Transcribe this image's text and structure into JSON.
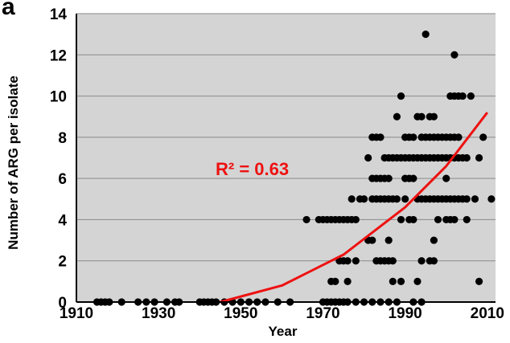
{
  "chart_data": {
    "type": "scatter",
    "panel_label": "a",
    "title": "",
    "xlabel": "Year",
    "ylabel": "Number of ARG per isolate",
    "xlim": [
      1910,
      2012
    ],
    "ylim": [
      0,
      14
    ],
    "x_ticks": [
      1910,
      1930,
      1950,
      1970,
      1990,
      2010
    ],
    "y_ticks": [
      0,
      2,
      4,
      6,
      8,
      10,
      12,
      14
    ],
    "grid": "horizontal",
    "background_color": "#d4d4d4",
    "point_color": "#000000",
    "trend_color": "#ee1111",
    "annotation": "R² = 0.63",
    "trendline": {
      "type": "polynomial",
      "points": [
        [
          1945,
          0
        ],
        [
          1960,
          0.8
        ],
        [
          1975,
          2.3
        ],
        [
          1990,
          4.6
        ],
        [
          2000,
          6.6
        ],
        [
          2010,
          9.2
        ]
      ]
    },
    "points": [
      [
        1915,
        0
      ],
      [
        1916,
        0
      ],
      [
        1917,
        0
      ],
      [
        1918,
        0
      ],
      [
        1921,
        0
      ],
      [
        1925,
        0
      ],
      [
        1927,
        0
      ],
      [
        1929,
        0
      ],
      [
        1932,
        0
      ],
      [
        1934,
        0
      ],
      [
        1935,
        0
      ],
      [
        1940,
        0
      ],
      [
        1941,
        0
      ],
      [
        1942,
        0
      ],
      [
        1943,
        0
      ],
      [
        1944,
        0
      ],
      [
        1946,
        0
      ],
      [
        1948,
        0
      ],
      [
        1950,
        0
      ],
      [
        1952,
        0
      ],
      [
        1954,
        0
      ],
      [
        1956,
        0
      ],
      [
        1959,
        0
      ],
      [
        1962,
        0
      ],
      [
        1966,
        4
      ],
      [
        1969,
        4
      ],
      [
        1970,
        4
      ],
      [
        1971,
        4
      ],
      [
        1972,
        4
      ],
      [
        1973,
        4
      ],
      [
        1974,
        4
      ],
      [
        1975,
        4
      ],
      [
        1976,
        4
      ],
      [
        1977,
        4
      ],
      [
        1978,
        4
      ],
      [
        1972,
        1
      ],
      [
        1973,
        1
      ],
      [
        1974,
        2
      ],
      [
        1975,
        2
      ],
      [
        1976,
        2
      ],
      [
        1978,
        2
      ],
      [
        1976,
        1
      ],
      [
        1977,
        5
      ],
      [
        1979,
        5
      ],
      [
        1980,
        5
      ],
      [
        1970,
        0
      ],
      [
        1971,
        0
      ],
      [
        1972,
        0
      ],
      [
        1973,
        0
      ],
      [
        1974,
        0
      ],
      [
        1975,
        0
      ],
      [
        1976,
        0
      ],
      [
        1978,
        0
      ],
      [
        1980,
        0
      ],
      [
        1982,
        0
      ],
      [
        1984,
        0
      ],
      [
        1986,
        0
      ],
      [
        1988,
        0
      ],
      [
        1992,
        0
      ],
      [
        1994,
        0
      ],
      [
        1981,
        3
      ],
      [
        1982,
        3
      ],
      [
        1983,
        2
      ],
      [
        1984,
        2
      ],
      [
        1985,
        2
      ],
      [
        1986,
        2
      ],
      [
        1987,
        2
      ],
      [
        1986,
        3
      ],
      [
        1987,
        1
      ],
      [
        1989,
        1
      ],
      [
        1988,
        5
      ],
      [
        1989,
        4
      ],
      [
        1990,
        5
      ],
      [
        1981,
        7
      ],
      [
        1982,
        8
      ],
      [
        1983,
        8
      ],
      [
        1984,
        8
      ],
      [
        1985,
        7
      ],
      [
        1986,
        7
      ],
      [
        1987,
        7
      ],
      [
        1988,
        7
      ],
      [
        1989,
        7
      ],
      [
        1982,
        6
      ],
      [
        1983,
        6
      ],
      [
        1984,
        6
      ],
      [
        1985,
        6
      ],
      [
        1986,
        6
      ],
      [
        1982,
        5
      ],
      [
        1983,
        5
      ],
      [
        1984,
        5
      ],
      [
        1985,
        5
      ],
      [
        1986,
        5
      ],
      [
        1987,
        5
      ],
      [
        1988,
        9
      ],
      [
        1990,
        8
      ],
      [
        1991,
        8
      ],
      [
        1992,
        8
      ],
      [
        1993,
        9
      ],
      [
        1994,
        9
      ],
      [
        1989,
        10
      ],
      [
        1990,
        7
      ],
      [
        1991,
        7
      ],
      [
        1992,
        7
      ],
      [
        1993,
        7
      ],
      [
        1994,
        7
      ],
      [
        1995,
        7
      ],
      [
        1996,
        7
      ],
      [
        1997,
        7
      ],
      [
        1998,
        7
      ],
      [
        1999,
        7
      ],
      [
        2000,
        7
      ],
      [
        2001,
        7
      ],
      [
        2002,
        7
      ],
      [
        2003,
        7
      ],
      [
        2004,
        7
      ],
      [
        2005,
        7
      ],
      [
        1990,
        6
      ],
      [
        1991,
        6
      ],
      [
        1992,
        6
      ],
      [
        1993,
        5
      ],
      [
        1994,
        5
      ],
      [
        1995,
        5
      ],
      [
        1996,
        5
      ],
      [
        1997,
        5
      ],
      [
        1998,
        5
      ],
      [
        1999,
        5
      ],
      [
        2000,
        5
      ],
      [
        2001,
        5
      ],
      [
        2002,
        5
      ],
      [
        2003,
        5
      ],
      [
        2004,
        5
      ],
      [
        2005,
        5
      ],
      [
        1991,
        4
      ],
      [
        1992,
        4
      ],
      [
        1993,
        1
      ],
      [
        1994,
        2
      ],
      [
        1996,
        2
      ],
      [
        1997,
        2
      ],
      [
        1997,
        3
      ],
      [
        1998,
        4
      ],
      [
        2000,
        4
      ],
      [
        2001,
        4
      ],
      [
        2002,
        4
      ],
      [
        1994,
        8
      ],
      [
        1995,
        8
      ],
      [
        1996,
        8
      ],
      [
        1997,
        8
      ],
      [
        1998,
        8
      ],
      [
        1999,
        8
      ],
      [
        2000,
        8
      ],
      [
        2001,
        8
      ],
      [
        2002,
        8
      ],
      [
        2003,
        8
      ],
      [
        1996,
        9
      ],
      [
        1997,
        9
      ],
      [
        1995,
        13
      ],
      [
        2001,
        10
      ],
      [
        2002,
        10
      ],
      [
        2003,
        10
      ],
      [
        2004,
        10
      ],
      [
        2006,
        10
      ],
      [
        2002,
        12
      ],
      [
        2000,
        6
      ],
      [
        2007,
        5
      ],
      [
        2008,
        7
      ],
      [
        2009,
        8
      ],
      [
        2008,
        1
      ],
      [
        2011,
        5
      ],
      [
        2005,
        4
      ]
    ]
  }
}
